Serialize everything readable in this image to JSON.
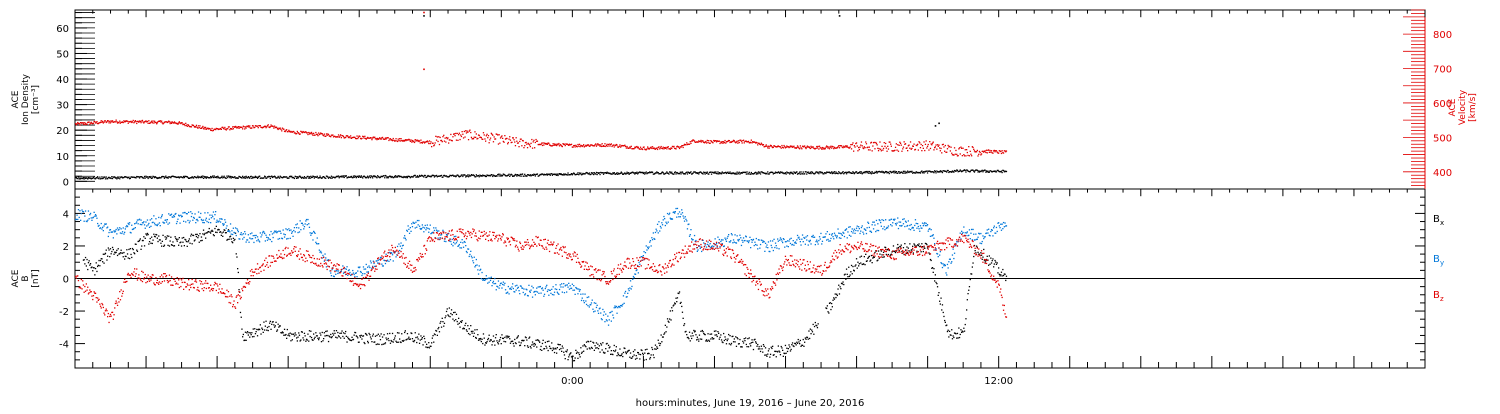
{
  "colors": {
    "axis": "#000000",
    "density": "#000000",
    "velocity": "#e00000",
    "bx": "#000000",
    "by": "#0077d9",
    "bz": "#e00000"
  },
  "x_axis": {
    "title": "hours:minutes, June 19, 2016 – June 20, 2016",
    "range_hours": [
      -14.0,
      24.0
    ],
    "labeled_ticks": [
      {
        "t": 0,
        "label": "0:00"
      },
      {
        "t": 12,
        "label": "12:00"
      }
    ],
    "major_tick_every_hours": 2
  },
  "chart_data": [
    {
      "type": "scatter",
      "panel": "plasma",
      "ylabel_lines": [
        "ACE",
        "Ion Density",
        "[cm⁻³]"
      ],
      "ylim": [
        -3,
        67
      ],
      "yticks": [
        0,
        10,
        20,
        30,
        40,
        50,
        60
      ],
      "y2label_lines": [
        "ACE",
        "Velocity",
        "[km/s]"
      ],
      "y2lim": [
        350,
        870
      ],
      "y2ticks": [
        400,
        500,
        600,
        700,
        800
      ],
      "series": [
        {
          "axis": "left",
          "color_key": "density",
          "keypoints": [
            [
              -14,
              1.5
            ],
            [
              -12,
              1.8
            ],
            [
              -10,
              1.9
            ],
            [
              -8,
              1.8
            ],
            [
              -6,
              2.0
            ],
            [
              -4,
              2.2
            ],
            [
              -2,
              2.6
            ],
            [
              -1,
              2.7
            ],
            [
              0,
              3.2
            ],
            [
              2,
              3.5
            ],
            [
              4,
              3.5
            ],
            [
              6,
              3.5
            ],
            [
              8,
              3.6
            ],
            [
              10,
              3.9
            ],
            [
              11,
              4.3
            ],
            [
              12.2,
              4.1
            ]
          ],
          "outliers": [
            [
              -4.2,
              65
            ],
            [
              7.5,
              65
            ],
            [
              10.2,
              22
            ],
            [
              10.3,
              23
            ]
          ]
        },
        {
          "axis": "right",
          "color_key": "velocity",
          "keypoints": [
            [
              -14,
              540
            ],
            [
              -13,
              548
            ],
            [
              -11.2,
              545
            ],
            [
              -10.2,
              525
            ],
            [
              -8.5,
              535
            ],
            [
              -8,
              518
            ],
            [
              -6.5,
              505
            ],
            [
              -5,
              495
            ],
            [
              -4,
              488
            ],
            [
              -3,
              510
            ],
            [
              -2,
              495
            ],
            [
              -1.5,
              485
            ],
            [
              0,
              478
            ],
            [
              1,
              480
            ],
            [
              2,
              470
            ],
            [
              3,
              472
            ],
            [
              3.4,
              492
            ],
            [
              4,
              488
            ],
            [
              5,
              490
            ],
            [
              5.5,
              475
            ],
            [
              7,
              472
            ],
            [
              8,
              475
            ],
            [
              9,
              475
            ],
            [
              10,
              478
            ],
            [
              10.8,
              462
            ],
            [
              11.5,
              462
            ],
            [
              12.2,
              458
            ]
          ],
          "noise_regions": [
            [
              -4,
              -1
            ],
            [
              7.8,
              11.5
            ]
          ],
          "outliers": [
            [
              -4.2,
              700
            ],
            [
              -4.2,
              865
            ]
          ]
        }
      ]
    },
    {
      "type": "scatter",
      "panel": "imf",
      "ylabel_lines": [
        "ACE",
        "B",
        "[nT]"
      ],
      "ylim": [
        -5.5,
        5.5
      ],
      "yticks": [
        -4,
        -2,
        0,
        2,
        4
      ],
      "zero_line": true,
      "legend": [
        {
          "label": "B",
          "sub": "x",
          "color_key": "bx"
        },
        {
          "label": "B",
          "sub": "y",
          "color_key": "by"
        },
        {
          "label": "B",
          "sub": "z",
          "color_key": "bz"
        }
      ],
      "series": [
        {
          "name": "Bx",
          "color_key": "bx",
          "keypoints": [
            [
              -14,
              1.8
            ],
            [
              -13.5,
              0.5
            ],
            [
              -13,
              1.8
            ],
            [
              -12.5,
              1.5
            ],
            [
              -12,
              2.5
            ],
            [
              -11,
              2.2
            ],
            [
              -10,
              3.0
            ],
            [
              -9.5,
              2.5
            ],
            [
              -9.3,
              -3.5
            ],
            [
              -8.5,
              -2.8
            ],
            [
              -8,
              -3.5
            ],
            [
              -7,
              -3.5
            ],
            [
              -6.5,
              -3.5
            ],
            [
              -5.5,
              -3.7
            ],
            [
              -4.6,
              -3.5
            ],
            [
              -4,
              -4.0
            ],
            [
              -3.5,
              -2.0
            ],
            [
              -3,
              -3.0
            ],
            [
              -2.5,
              -3.7
            ],
            [
              -1.5,
              -3.8
            ],
            [
              -0.5,
              -4.2
            ],
            [
              0,
              -4.8
            ],
            [
              0.5,
              -4.0
            ],
            [
              1,
              -4.3
            ],
            [
              1.5,
              -4.6
            ],
            [
              2,
              -4.7
            ],
            [
              2.3,
              -4.5
            ],
            [
              2.6,
              -3.0
            ],
            [
              3,
              -1.0
            ],
            [
              3.2,
              -3.5
            ],
            [
              4,
              -3.5
            ],
            [
              4.5,
              -3.8
            ],
            [
              5,
              -3.9
            ],
            [
              5.5,
              -4.5
            ],
            [
              6,
              -4.4
            ],
            [
              6.5,
              -3.8
            ],
            [
              7,
              -2.5
            ],
            [
              7.3,
              -1.5
            ],
            [
              7.7,
              0.3
            ],
            [
              8,
              1.0
            ],
            [
              9,
              1.8
            ],
            [
              10,
              2.0
            ],
            [
              10.3,
              -1.0
            ],
            [
              10.6,
              -3.4
            ],
            [
              11,
              -3.3
            ],
            [
              11.3,
              2.0
            ],
            [
              11.8,
              1.0
            ],
            [
              12.2,
              0.0
            ]
          ],
          "gaps": [
            [
              -14,
              -13.8
            ],
            [
              6.9,
              7.1
            ]
          ]
        },
        {
          "name": "By",
          "color_key": "by",
          "keypoints": [
            [
              -14,
              4.0
            ],
            [
              -13.5,
              3.8
            ],
            [
              -13,
              2.8
            ],
            [
              -12,
              3.5
            ],
            [
              -11,
              3.8
            ],
            [
              -10,
              3.8
            ],
            [
              -9.5,
              2.8
            ],
            [
              -9,
              2.5
            ],
            [
              -8,
              2.8
            ],
            [
              -7.5,
              3.5
            ],
            [
              -6.8,
              0.5
            ],
            [
              -6,
              0.5
            ],
            [
              -5,
              1.5
            ],
            [
              -4.5,
              3.5
            ],
            [
              -4,
              3.0
            ],
            [
              -3,
              2.0
            ],
            [
              -2.5,
              0.0
            ],
            [
              -2,
              -0.5
            ],
            [
              -1,
              -0.8
            ],
            [
              0,
              -0.5
            ],
            [
              0.5,
              -1.5
            ],
            [
              1,
              -2.5
            ],
            [
              1.5,
              -1.0
            ],
            [
              2,
              1.5
            ],
            [
              2.5,
              3.5
            ],
            [
              3,
              4.2
            ],
            [
              3.5,
              2.0
            ],
            [
              4,
              2.2
            ],
            [
              4.5,
              2.5
            ],
            [
              5.5,
              2.0
            ],
            [
              6,
              2.3
            ],
            [
              7,
              2.5
            ],
            [
              8,
              3.0
            ],
            [
              9,
              3.5
            ],
            [
              10,
              3.2
            ],
            [
              10.5,
              0.5
            ],
            [
              11,
              3.0
            ],
            [
              11.5,
              2.5
            ],
            [
              12.2,
              3.5
            ]
          ]
        },
        {
          "name": "Bz",
          "color_key": "bz",
          "keypoints": [
            [
              -14,
              0.0
            ],
            [
              -13.5,
              -1.0
            ],
            [
              -13,
              -2.5
            ],
            [
              -12.5,
              0.5
            ],
            [
              -12,
              0.0
            ],
            [
              -11.5,
              0.0
            ],
            [
              -11,
              -0.3
            ],
            [
              -10,
              -0.5
            ],
            [
              -9.5,
              -1.5
            ],
            [
              -9,
              0.5
            ],
            [
              -8,
              1.8
            ],
            [
              -7,
              1.0
            ],
            [
              -6.5,
              0.5
            ],
            [
              -6,
              -0.5
            ],
            [
              -5.5,
              1.0
            ],
            [
              -5,
              2.0
            ],
            [
              -4.5,
              0.5
            ],
            [
              -4,
              2.5
            ],
            [
              -3,
              2.8
            ],
            [
              -2,
              2.5
            ],
            [
              -1.5,
              2.0
            ],
            [
              -1,
              2.3
            ],
            [
              0,
              1.5
            ],
            [
              0.5,
              0.5
            ],
            [
              1,
              0.0
            ],
            [
              1.5,
              1.0
            ],
            [
              2,
              1.0
            ],
            [
              2.5,
              0.5
            ],
            [
              3,
              1.5
            ],
            [
              3.5,
              2.2
            ],
            [
              4,
              2.0
            ],
            [
              4.5,
              1.5
            ],
            [
              5.5,
              -1.0
            ],
            [
              6,
              1.2
            ],
            [
              7,
              0.5
            ],
            [
              7.5,
              1.8
            ],
            [
              8,
              2.0
            ],
            [
              9,
              1.5
            ],
            [
              10,
              1.8
            ],
            [
              11,
              2.5
            ],
            [
              11.5,
              1.5
            ],
            [
              12,
              -0.5
            ],
            [
              12.2,
              -2.5
            ]
          ]
        }
      ]
    }
  ]
}
